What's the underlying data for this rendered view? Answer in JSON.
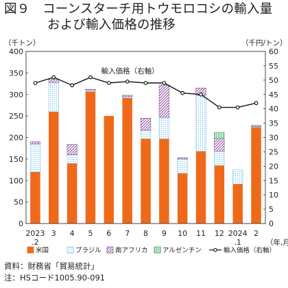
{
  "title": {
    "line1": "図９　コーンスターチ用トウモロコシの輸入量",
    "line2": "および輸入価格の推移"
  },
  "notes": {
    "source": "資料：財務省「貿易統計」",
    "note": "注：HSコード1005.90-091"
  },
  "chart_data": {
    "type": "bar",
    "stacked": true,
    "categories": [
      "2023\n.2",
      "3",
      "4",
      "5",
      "6",
      "7",
      "8",
      "9",
      "10",
      "11",
      "12",
      "2024\n.1",
      "2"
    ],
    "xlabel": "（年,月）",
    "ylabel_left": "（千トン）",
    "ylabel_right": "（千円/トン）",
    "ylim_left": [
      0,
      400
    ],
    "ylim_right": [
      0,
      60
    ],
    "yticks_left": [
      "0",
      "50",
      "100",
      "150",
      "200",
      "250",
      "300",
      "350",
      "400"
    ],
    "yticks_right": [
      "0",
      "5",
      "10",
      "15",
      "20",
      "25",
      "30",
      "35",
      "40",
      "45",
      "50",
      "55",
      "60"
    ],
    "series": [
      {
        "name": "米国",
        "color": "#ee6a1a",
        "pattern": "solid",
        "values": [
          120,
          260,
          140,
          307,
          250,
          292,
          197,
          197,
          117,
          168,
          135,
          92,
          224
        ]
      },
      {
        "name": "ブラジル",
        "color": "#78c4e8",
        "pattern": "dots",
        "values": [
          65,
          68,
          20,
          3,
          0,
          3,
          20,
          50,
          33,
          130,
          33,
          33,
          2
        ]
      },
      {
        "name": "南アフリカ",
        "color": "#8a4a9a",
        "pattern": "diagonal",
        "values": [
          5,
          7,
          24,
          2,
          0,
          3,
          28,
          75,
          3,
          17,
          30,
          0,
          2
        ]
      },
      {
        "name": "アルゼンチン",
        "color": "#3aaa5a",
        "pattern": "vertical",
        "values": [
          0,
          0,
          0,
          0,
          0,
          0,
          0,
          0,
          0,
          0,
          14,
          0,
          0
        ]
      }
    ],
    "line": {
      "name": "輸入価格（右軸）",
      "axis": "right",
      "color": "#111111",
      "values": [
        49,
        51,
        48.2,
        51,
        49,
        49.5,
        49,
        49,
        45.5,
        45,
        40.5,
        40.5,
        42
      ]
    },
    "annotation": "輸入価格（右軸）",
    "legend_position": "bottom",
    "grid": false
  }
}
